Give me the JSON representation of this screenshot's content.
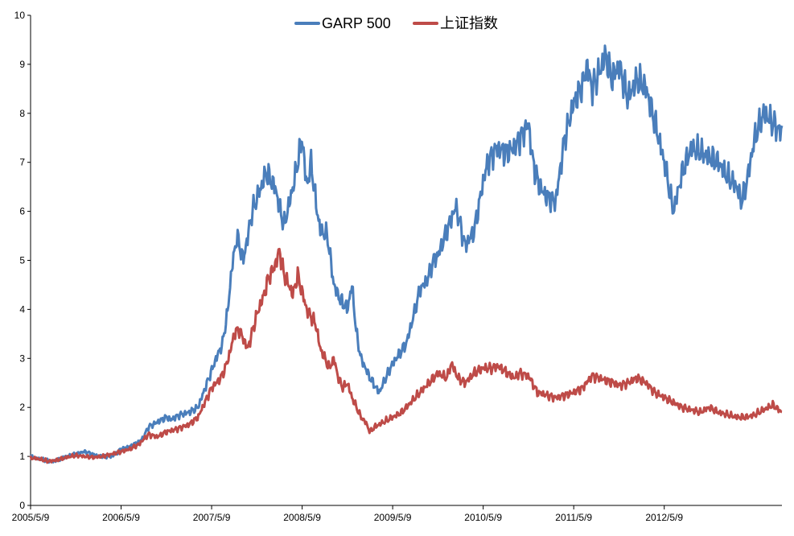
{
  "chart_data": {
    "type": "line",
    "title": "",
    "xlabel": "",
    "ylabel": "",
    "ylim": [
      0,
      10
    ],
    "yticks": [
      "0",
      "1",
      "2",
      "3",
      "4",
      "5",
      "6",
      "7",
      "8",
      "9",
      "10"
    ],
    "xticks": [
      "2005/5/9",
      "2006/5/9",
      "2007/5/9",
      "2008/5/9",
      "2009/5/9",
      "2010/5/9",
      "2011/5/9",
      "2012/5/9"
    ],
    "legend": {
      "position": "top-center"
    },
    "grid": false,
    "series": [
      {
        "name": "GARP 500",
        "color": "#4a7ebb",
        "t": [
          0,
          0.08,
          0.25,
          0.4,
          0.5,
          0.6,
          0.75,
          0.9,
          1.0,
          1.1,
          1.2,
          1.25,
          1.3,
          1.4,
          1.5,
          1.55,
          1.65,
          1.75,
          1.85,
          1.95,
          2.05,
          2.12,
          2.18,
          2.22,
          2.28,
          2.35,
          2.45,
          2.55,
          2.6,
          2.7,
          2.8,
          2.9,
          3.0,
          3.05,
          3.1,
          3.15,
          3.2,
          3.28,
          3.35,
          3.42,
          3.5,
          3.55,
          3.6,
          3.65,
          3.75,
          3.85,
          4.0,
          4.15,
          4.25,
          4.3,
          4.38,
          4.45,
          4.5,
          4.6,
          4.7,
          4.8,
          4.9,
          5.0,
          5.05,
          5.15,
          5.25,
          5.35,
          5.5,
          5.55,
          5.62,
          5.7,
          5.8,
          5.9,
          6.0,
          6.1,
          6.15,
          6.2,
          6.3,
          6.35,
          6.42,
          6.5,
          6.6,
          6.7,
          6.8,
          6.9,
          7.0,
          7.1,
          7.2,
          7.3,
          7.4,
          7.5,
          7.6,
          7.7,
          7.8,
          7.85,
          7.9,
          8.0,
          8.1,
          8.2,
          8.3
        ],
        "values": [
          1.0,
          0.95,
          0.9,
          1.0,
          1.05,
          1.1,
          1.0,
          1.0,
          1.15,
          1.2,
          1.3,
          1.4,
          1.6,
          1.7,
          1.8,
          1.75,
          1.85,
          1.9,
          2.0,
          2.5,
          3.0,
          3.3,
          4.0,
          4.8,
          5.5,
          5.0,
          6.0,
          6.5,
          6.8,
          6.5,
          5.7,
          6.5,
          7.5,
          6.5,
          7.0,
          6.2,
          5.6,
          5.5,
          4.5,
          4.2,
          4.0,
          4.5,
          3.5,
          3.0,
          2.6,
          2.3,
          2.9,
          3.3,
          4.0,
          4.4,
          4.6,
          5.0,
          5.1,
          5.6,
          6.1,
          5.3,
          5.6,
          6.6,
          7.0,
          7.3,
          7.2,
          7.3,
          7.8,
          7.0,
          6.5,
          6.3,
          6.2,
          7.5,
          8.2,
          8.6,
          9.0,
          8.5,
          8.9,
          9.2,
          8.7,
          9.0,
          8.3,
          8.7,
          8.5,
          7.8,
          7.0,
          6.0,
          6.8,
          7.3,
          7.2,
          7.1,
          7.0,
          6.7,
          6.5,
          6.2,
          6.5,
          7.5,
          8.0,
          7.8,
          7.6
        ]
      },
      {
        "name": "上证指数",
        "color": "#be4b48",
        "t": [
          0,
          0.08,
          0.2,
          0.3,
          0.4,
          0.5,
          0.6,
          0.7,
          0.8,
          0.9,
          1.0,
          1.1,
          1.2,
          1.3,
          1.4,
          1.5,
          1.6,
          1.75,
          1.85,
          1.9,
          2.0,
          2.1,
          2.15,
          2.2,
          2.25,
          2.3,
          2.35,
          2.4,
          2.5,
          2.58,
          2.62,
          2.7,
          2.75,
          2.8,
          2.9,
          2.95,
          3.05,
          3.15,
          3.2,
          3.25,
          3.3,
          3.35,
          3.4,
          3.45,
          3.5,
          3.55,
          3.6,
          3.65,
          3.7,
          3.75,
          3.8,
          3.9,
          4.0,
          4.1,
          4.2,
          4.3,
          4.4,
          4.5,
          4.6,
          4.65,
          4.72,
          4.8,
          4.9,
          5.0,
          5.1,
          5.15,
          5.2,
          5.3,
          5.35,
          5.4,
          5.5,
          5.6,
          5.8,
          6.0,
          6.1,
          6.2,
          6.35,
          6.45,
          6.5,
          6.6,
          6.7,
          6.8,
          6.9,
          7.0,
          7.1,
          7.2,
          7.3,
          7.4,
          7.5,
          7.6,
          7.7,
          7.8,
          7.9,
          8.0,
          8.1,
          8.2,
          8.3
        ],
        "values": [
          0.97,
          0.95,
          0.9,
          0.93,
          0.98,
          1.02,
          1.0,
          0.98,
          1.0,
          1.05,
          1.1,
          1.15,
          1.25,
          1.45,
          1.4,
          1.5,
          1.55,
          1.65,
          1.8,
          2.0,
          2.4,
          2.6,
          2.8,
          3.1,
          3.5,
          3.6,
          3.4,
          3.2,
          3.9,
          4.3,
          4.6,
          4.9,
          5.2,
          4.7,
          4.3,
          4.7,
          4.0,
          3.7,
          3.2,
          3.0,
          2.8,
          3.0,
          2.6,
          2.4,
          2.5,
          2.2,
          2.0,
          1.8,
          1.7,
          1.5,
          1.6,
          1.7,
          1.8,
          1.9,
          2.1,
          2.3,
          2.5,
          2.7,
          2.6,
          2.9,
          2.6,
          2.5,
          2.7,
          2.8,
          2.8,
          2.85,
          2.8,
          2.65,
          2.6,
          2.7,
          2.65,
          2.3,
          2.2,
          2.3,
          2.4,
          2.65,
          2.55,
          2.5,
          2.45,
          2.5,
          2.6,
          2.5,
          2.3,
          2.2,
          2.1,
          2.0,
          1.95,
          1.9,
          2.0,
          1.9,
          1.85,
          1.8,
          1.8,
          1.85,
          1.95,
          2.05,
          1.9
        ]
      }
    ]
  }
}
